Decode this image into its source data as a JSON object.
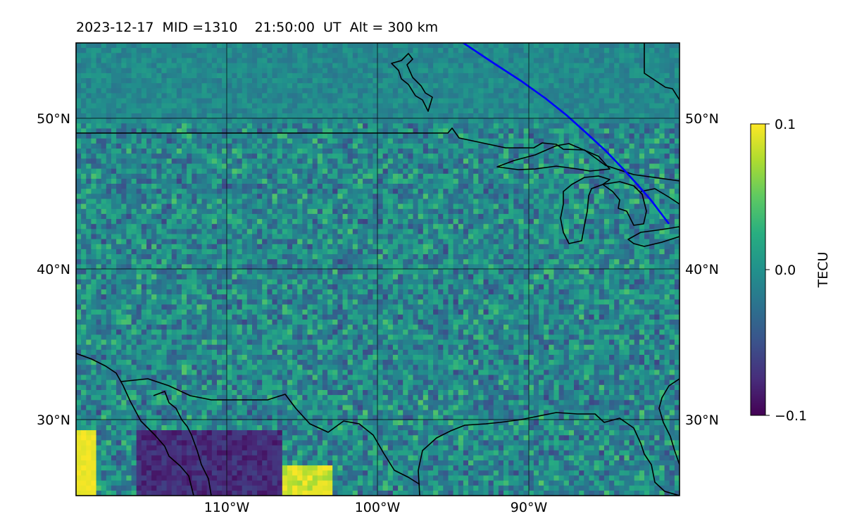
{
  "title": "2023-12-17  MID =1310    21:50:00  UT  Alt = 300 km",
  "map": {
    "lon_range": [
      -120,
      -80
    ],
    "lat_range": [
      25,
      55
    ],
    "lat_ticks": [
      {
        "value": 30,
        "label": "30°N"
      },
      {
        "value": 40,
        "label": "40°N"
      },
      {
        "value": 50,
        "label": "50°N"
      }
    ],
    "lon_ticks": [
      {
        "value": -110,
        "label": "110°W"
      },
      {
        "value": -100,
        "label": "100°W"
      },
      {
        "value": -90,
        "label": "90°W"
      }
    ],
    "grid": true,
    "colormap": "viridis",
    "colors": {
      "coastline": "#000000",
      "track": "#0000ff",
      "grid": "#000000"
    }
  },
  "colorbar": {
    "label": "TECU",
    "min": -0.1,
    "max": 0.1,
    "ticks": [
      {
        "value": 0.1,
        "label": "0.1"
      },
      {
        "value": 0.0,
        "label": "0.0"
      },
      {
        "value": -0.1,
        "label": "−0.1"
      }
    ]
  }
}
